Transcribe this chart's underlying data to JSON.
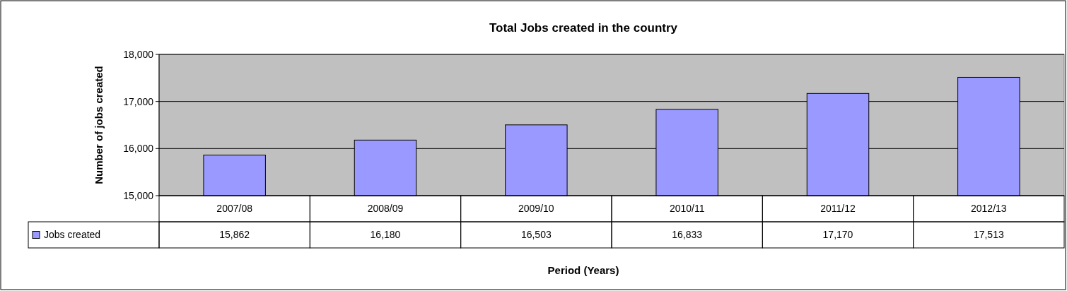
{
  "chart_data": {
    "type": "bar",
    "title": "Total Jobs created in the country",
    "xlabel": "Period (Years)",
    "ylabel": "Number of jobs created",
    "categories": [
      "2007/08",
      "2008/09",
      "2009/10",
      "2010/11",
      "2011/12",
      "2012/13"
    ],
    "series": [
      {
        "name": "Jobs created",
        "color": "#9999ff",
        "values": [
          15862,
          16180,
          16503,
          16833,
          17170,
          17513
        ],
        "value_labels": [
          "15,862",
          "16,180",
          "16,503",
          "16,833",
          "17,170",
          "17,513"
        ]
      }
    ],
    "ylim": [
      15000,
      18000
    ],
    "yticks": [
      {
        "value": 15000,
        "label": "15,000"
      },
      {
        "value": 16000,
        "label": "16,000"
      },
      {
        "value": 17000,
        "label": "17,000"
      },
      {
        "value": 18000,
        "label": "18,000"
      }
    ],
    "grid": "y",
    "legend": "bottom left"
  }
}
